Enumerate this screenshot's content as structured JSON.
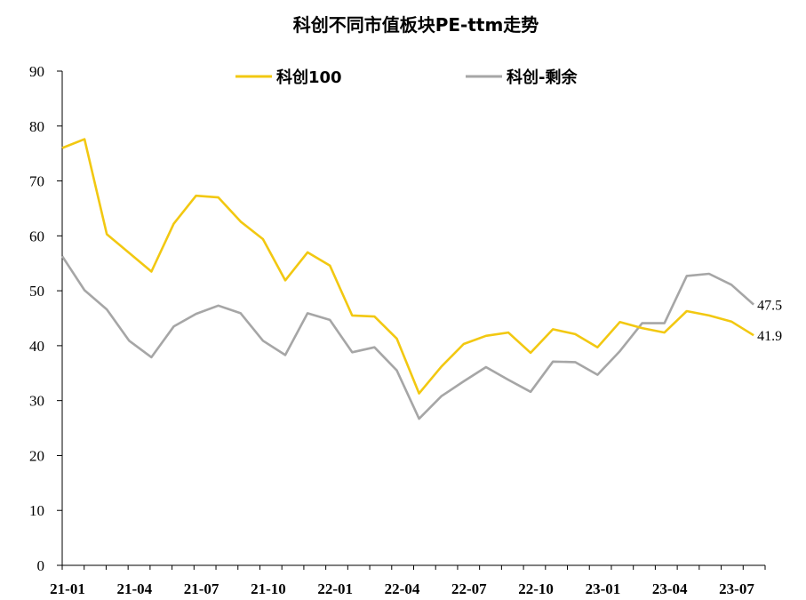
{
  "chart_data": {
    "type": "line",
    "title": "科创不同市值板块PE-ttm走势",
    "xlabel": "",
    "ylabel": "",
    "ylim": [
      0,
      90
    ],
    "yticks": [
      0,
      10,
      20,
      30,
      40,
      50,
      60,
      70,
      80,
      90
    ],
    "legend_position": "top-center",
    "grid": false,
    "x": [
      "21-01",
      "21-02",
      "21-03",
      "21-04",
      "21-05",
      "21-06",
      "21-07",
      "21-08",
      "21-09",
      "21-10",
      "21-11",
      "21-12",
      "22-01",
      "22-02",
      "22-03",
      "22-04",
      "22-05",
      "22-06",
      "22-07",
      "22-08",
      "22-09",
      "22-10",
      "22-11",
      "22-12",
      "23-01",
      "23-02",
      "23-03",
      "23-04",
      "23-05",
      "23-06",
      "23-07",
      "23-08"
    ],
    "xtick_labels": [
      "21-01",
      "21-04",
      "21-07",
      "21-10",
      "22-01",
      "22-04",
      "22-07",
      "22-10",
      "23-01",
      "23-04",
      "23-07"
    ],
    "series": [
      {
        "name": "科创100",
        "color": "#F2C811",
        "values": [
          76,
          77.6,
          60.3,
          56.9,
          53.5,
          62.2,
          67.3,
          67.0,
          62.6,
          59.4,
          51.9,
          57.0,
          54.6,
          45.5,
          45.3,
          41.3,
          31.3,
          36.2,
          40.3,
          41.8,
          42.4,
          38.7,
          43.0,
          42.1,
          39.7,
          44.3,
          43.2,
          42.4,
          46.3,
          45.5,
          44.4,
          41.9
        ]
      },
      {
        "name": "科创-剩余",
        "color": "#A6A6A6",
        "values": [
          56.3,
          50.1,
          46.6,
          40.9,
          37.9,
          43.5,
          45.8,
          47.3,
          45.9,
          40.9,
          38.3,
          45.9,
          44.7,
          38.8,
          39.7,
          35.5,
          26.7,
          30.8,
          33.5,
          36.1,
          33.8,
          31.6,
          37.1,
          37.0,
          34.7,
          39.0,
          44.1,
          44.1,
          52.7,
          53.1,
          51.1,
          47.5
        ]
      }
    ],
    "end_labels": [
      "41.9",
      "47.5"
    ]
  }
}
